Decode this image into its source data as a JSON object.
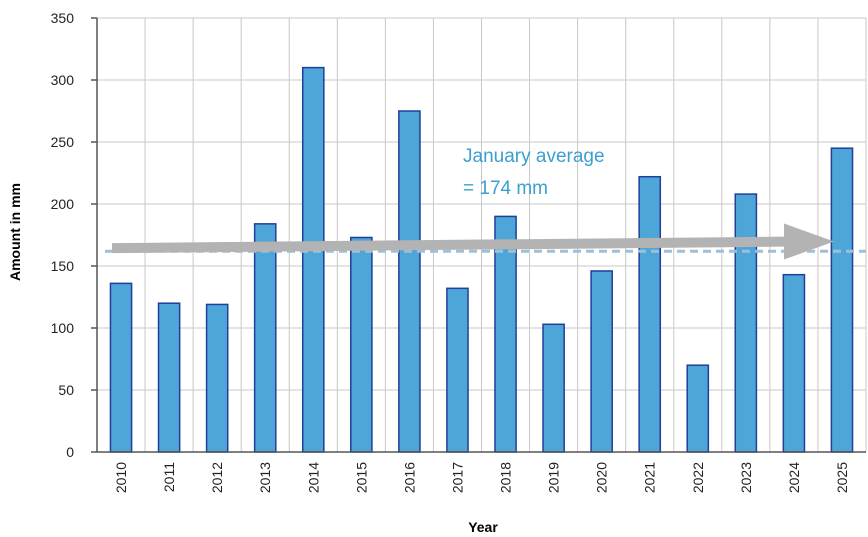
{
  "chart_data": {
    "type": "bar",
    "categories": [
      "2010",
      "2011",
      "2012",
      "2013",
      "2014",
      "2015",
      "2016",
      "2017",
      "2018",
      "2019",
      "2020",
      "2021",
      "2022",
      "2023",
      "2024",
      "2025"
    ],
    "values": [
      136,
      120,
      119,
      184,
      310,
      173,
      275,
      132,
      190,
      103,
      146,
      222,
      70,
      208,
      143,
      245
    ],
    "xlabel": "Year",
    "ylabel": "Amount in mm",
    "ylim": [
      0,
      350
    ],
    "yticks": [
      0,
      50,
      100,
      150,
      200,
      250,
      300,
      350
    ],
    "grid": true,
    "average_value": 174,
    "trend": {
      "start": 166,
      "end": 181
    },
    "annotation": {
      "line1": "January average",
      "line2": "= 174 mm"
    },
    "colors": {
      "bar_fill": "#4ea6d8",
      "bar_stroke": "#1f3f9a",
      "grid": "#c8c8c8",
      "average_line": "#9fbfd8",
      "trend_arrow": "#b3b3b3",
      "annotation_text": "#3b9fd0"
    }
  }
}
